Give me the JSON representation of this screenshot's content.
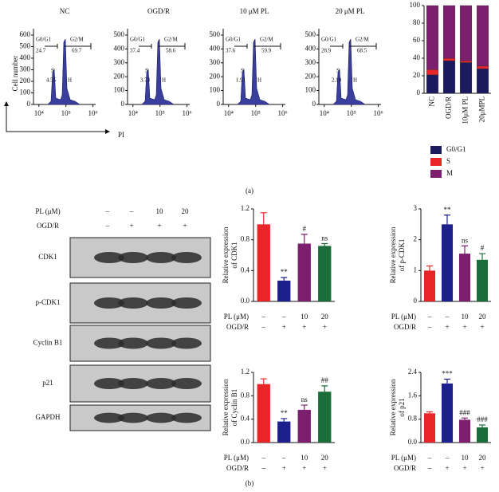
{
  "panel_labels": {
    "a": "(a)",
    "b": "(b)"
  },
  "flow_axes": {
    "ylabel": "Cell number",
    "xlabel": "PI",
    "g0g1_label": "G0/G1",
    "g2m_label": "G2/M",
    "s_label": "S",
    "h_label": "H",
    "xlim": [
      3.8,
      6.1
    ],
    "xticks": [
      {
        "value": 4,
        "label": "10⁴"
      },
      {
        "value": 5,
        "label": "10⁵"
      },
      {
        "value": 6,
        "label": "10⁶"
      }
    ]
  },
  "flow_panels": [
    {
      "title": "NC",
      "g0g1": 24.7,
      "g2m": 69.7,
      "s_value": 4.55,
      "ylim": [
        0,
        600
      ],
      "yticks": [
        0,
        100,
        200,
        300,
        400,
        500,
        600
      ]
    },
    {
      "title": "OGD/R",
      "g0g1": 37.4,
      "g2m": 58.6,
      "s_value": 3.73,
      "ylim": [
        0,
        500
      ],
      "yticks": [
        0,
        100,
        200,
        300,
        400,
        500
      ]
    },
    {
      "title": "10 μM PL",
      "g0g1": 37.6,
      "g2m": 59.9,
      "s_value": 1.91,
      "ylim": [
        0,
        500
      ],
      "yticks": [
        0,
        100,
        200,
        300,
        400,
        500
      ]
    },
    {
      "title": "20 μM PL",
      "g0g1": 28.9,
      "g2m": 68.5,
      "s_value": 2.19,
      "ylim": [
        0,
        500
      ],
      "yticks": [
        0,
        100,
        200,
        300,
        400,
        500
      ]
    }
  ],
  "blot": {
    "pl_label": "PL (μM)",
    "ogd_label": "OGD/R",
    "pl_row": [
      "–",
      "–",
      "10",
      "20"
    ],
    "ogd_row": [
      "–",
      "+",
      "+",
      "+"
    ],
    "proteins": [
      "CDK1",
      "p-CDK1",
      "Cyclin B1",
      "p21",
      "GAPDH"
    ]
  },
  "chart_data": [
    {
      "type": "stacked_bar",
      "categories": [
        "NC",
        "OGD/R",
        "10μM PL",
        "20μMPL"
      ],
      "series": [
        {
          "name": "G0/G1",
          "color": "#1b1a5e",
          "values": [
            21,
            37,
            35,
            28
          ]
        },
        {
          "name": "S",
          "color": "#e8262a",
          "values": [
            6,
            3,
            2,
            3
          ]
        },
        {
          "name": "M",
          "color": "#7b1f6e",
          "values": [
            73,
            60,
            63,
            69
          ]
        }
      ],
      "ylim": [
        0,
        100
      ],
      "yticks": [
        0,
        20,
        40,
        60,
        80,
        100
      ],
      "legend": "below"
    },
    {
      "type": "bar",
      "ylabel_lines": [
        "Relative expression",
        "of CDK1"
      ],
      "pl_label": "PL (μM)",
      "ogd_label": "OGD/R",
      "pl_row": [
        "–",
        "–",
        "10",
        "20"
      ],
      "ogd_row": [
        "–",
        "+",
        "+",
        "+"
      ],
      "values": [
        1.0,
        0.27,
        0.75,
        0.72
      ],
      "errors": [
        0.15,
        0.04,
        0.12,
        0.03
      ],
      "annotations": [
        null,
        "**",
        "#",
        "ns"
      ],
      "colors": [
        "#e8262a",
        "#1c1f8c",
        "#7b1f6e",
        "#1b6e3a"
      ],
      "ylim": [
        0,
        1.2
      ],
      "yticks": [
        {
          "value": 0,
          "label": "0.0"
        },
        0.4,
        0.8,
        1.2
      ]
    },
    {
      "type": "bar",
      "ylabel_lines": [
        "Relative expression",
        "of p-CDK1"
      ],
      "pl_label": "PL (μM)",
      "ogd_label": "OGD/R",
      "pl_row": [
        "–",
        "–",
        "10",
        "20"
      ],
      "ogd_row": [
        "–",
        "+",
        "+",
        "+"
      ],
      "values": [
        1.0,
        2.5,
        1.55,
        1.35
      ],
      "errors": [
        0.15,
        0.3,
        0.25,
        0.2
      ],
      "annotations": [
        null,
        "**",
        "ns",
        "#"
      ],
      "colors": [
        "#e8262a",
        "#1c1f8c",
        "#7b1f6e",
        "#1b6e3a"
      ],
      "ylim": [
        0,
        3
      ],
      "yticks": [
        0,
        1,
        2,
        3
      ]
    },
    {
      "type": "bar",
      "ylabel_lines": [
        "Relative expression",
        "of Cyclin B1"
      ],
      "pl_label": "PL (μM)",
      "ogd_label": "OGD/R",
      "pl_row": [
        "–",
        "–",
        "10",
        "20"
      ],
      "ogd_row": [
        "–",
        "+",
        "+",
        "+"
      ],
      "values": [
        1.0,
        0.36,
        0.56,
        0.87
      ],
      "errors": [
        0.09,
        0.05,
        0.08,
        0.1
      ],
      "annotations": [
        null,
        "**",
        "ns",
        "##"
      ],
      "colors": [
        "#e8262a",
        "#1c1f8c",
        "#7b1f6e",
        "#1b6e3a"
      ],
      "ylim": [
        0,
        1.2
      ],
      "yticks": [
        {
          "value": 0,
          "label": "0.0"
        },
        0.4,
        0.8,
        1.2
      ]
    },
    {
      "type": "bar",
      "ylabel_lines": [
        "Relative expression",
        "of p21"
      ],
      "pl_label": "PL (μM)",
      "ogd_label": "OGD/R",
      "pl_row": [
        "–",
        "–",
        "10",
        "20"
      ],
      "ogd_row": [
        "–",
        "+",
        "+",
        "+"
      ],
      "values": [
        1.0,
        2.02,
        0.78,
        0.52
      ],
      "errors": [
        0.05,
        0.15,
        0.06,
        0.08
      ],
      "annotations": [
        null,
        "***",
        "###",
        "###"
      ],
      "colors": [
        "#e8262a",
        "#1c1f8c",
        "#7b1f6e",
        "#1b6e3a"
      ],
      "ylim": [
        0,
        2.4
      ],
      "yticks": [
        {
          "value": 0,
          "label": "0.0"
        },
        0.8,
        1.6,
        2.4
      ]
    }
  ]
}
